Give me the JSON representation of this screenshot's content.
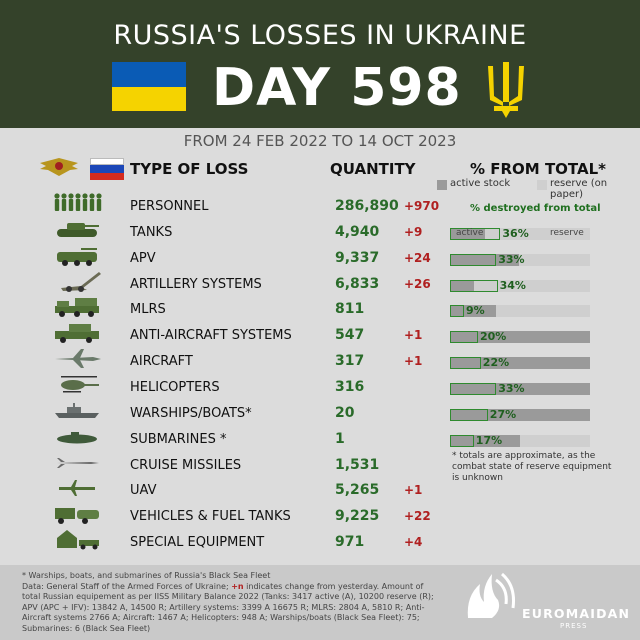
{
  "header": {
    "title": "RUSSIA'S LOSSES IN UKRAINE",
    "day": "DAY 598"
  },
  "date_range": "FROM 24 FEB 2022 TO 14 OCT 2023",
  "columns": {
    "type": "TYPE OF LOSS",
    "quantity": "QUANTITY",
    "percent": "% FROM TOTAL*"
  },
  "legend": {
    "active": "active stock",
    "reserve": "reserve (on paper)"
  },
  "destroyed_label": "% destroyed from total",
  "tanks_bar_labels": {
    "active": "active",
    "reserve": "reserve"
  },
  "colors": {
    "header_bg": "#34422a",
    "quantity": "#2a6b2a",
    "change": "#b02020",
    "active_stock": "#9a9a9a",
    "reserve_stock": "#cfcfcf",
    "destroyed_outline": "#2f8a2f"
  },
  "rows": [
    {
      "name": "PERSONNEL",
      "qty": "286,890",
      "chg": "+970",
      "icon": "soldiers-icon"
    },
    {
      "name": "TANKS",
      "qty": "4,940",
      "chg": "+9",
      "icon": "tank-icon",
      "pct": "36%",
      "pct_value": 36,
      "active_share": 25
    },
    {
      "name": "APV",
      "qty": "9,337",
      "chg": "+24",
      "icon": "apv-icon",
      "pct": "33%",
      "pct_value": 33,
      "active_share": 49
    },
    {
      "name": "ARTILLERY SYSTEMS",
      "qty": "6,833",
      "chg": "+26",
      "icon": "artillery-icon",
      "pct": "34%",
      "pct_value": 34,
      "active_share": 17
    },
    {
      "name": "MLRS",
      "qty": "811",
      "chg": "",
      "icon": "mlrs-icon",
      "pct": "9%",
      "pct_value": 9,
      "active_share": 33
    },
    {
      "name": "ANTI-AIRCRAFT SYSTEMS",
      "qty": "547",
      "chg": "+1",
      "icon": "anti-aircraft-icon",
      "pct": "20%",
      "pct_value": 20,
      "active_share": 100
    },
    {
      "name": "AIRCRAFT",
      "qty": "317",
      "chg": "+1",
      "icon": "aircraft-icon",
      "pct": "22%",
      "pct_value": 22,
      "active_share": 100
    },
    {
      "name": "HELICOPTERS",
      "qty": "316",
      "chg": "",
      "icon": "helicopter-icon",
      "pct": "33%",
      "pct_value": 33,
      "active_share": 100
    },
    {
      "name": "WARSHIPS/BOATS*",
      "qty": "20",
      "chg": "",
      "icon": "warship-icon",
      "pct": "27%",
      "pct_value": 27,
      "active_share": 100
    },
    {
      "name": "SUBMARINES *",
      "qty": "1",
      "chg": "",
      "icon": "submarine-icon",
      "pct": "17%",
      "pct_value": 17,
      "active_share": 50
    },
    {
      "name": "CRUISE MISSILES",
      "qty": "1,531",
      "chg": "",
      "icon": "cruise-missile-icon"
    },
    {
      "name": "UAV",
      "qty": "5,265",
      "chg": "+1",
      "icon": "uav-icon"
    },
    {
      "name": "VEHICLES & FUEL TANKS",
      "qty": "9,225",
      "chg": "+22",
      "icon": "vehicles-icon"
    },
    {
      "name": "SPECIAL EQUIPMENT",
      "qty": "971",
      "chg": "+4",
      "icon": "special-equipment-icon"
    }
  ],
  "note": "* totals are approximate, as the combat state of reserve equipment is unknown",
  "footer": {
    "line1": "* Warships, boats, and submarines of Russia's Black Sea Fleet",
    "line2_pre": "Data: General Staff of the Armed Forces of Ukraine; ",
    "line2_red": "+n",
    "line2_post": " indicates change from yesterday. Amount of total Russian equipement as per IISS Military Balance 2022 (Tanks: 3417 active (A), 10200 reserve (R); APV (APC + IFV): 13842 A, 14500 R; Artillery systems: 3399 A 16675 R; MLRS: 2804 A, 5810 R; Anti-Aircraft systems 2766 A; Aircraft: 1467 A; Helicopters: 948 A; Warships/boats (Black Sea Fleet): 75; Submarines: 6 (Black Sea Fleet)"
  },
  "brand": {
    "name": "EUROMAIDAN",
    "sub": "PRESS"
  }
}
